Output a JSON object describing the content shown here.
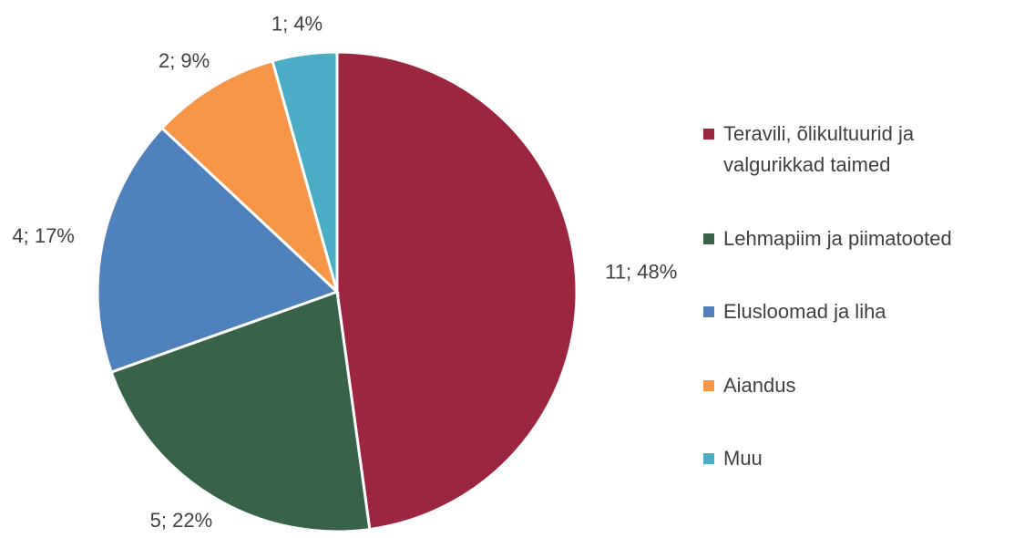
{
  "chart_data": {
    "type": "pie",
    "categories": [
      "Teravili, õlikultuurid ja valgurikkad taimed",
      "Lehmapiim ja piimatooted",
      "Elusloomad ja liha",
      "Aiandus",
      "Muu"
    ],
    "values": [
      11,
      5,
      4,
      2,
      1
    ],
    "value_labels": [
      "11; 48%",
      "5; 22%",
      "4; 17%",
      "2; 9%",
      "1; 4%"
    ],
    "colors": [
      "#9c2540",
      "#376449",
      "#4f81bd",
      "#f79646",
      "#4bacc6"
    ],
    "legend": "right"
  }
}
